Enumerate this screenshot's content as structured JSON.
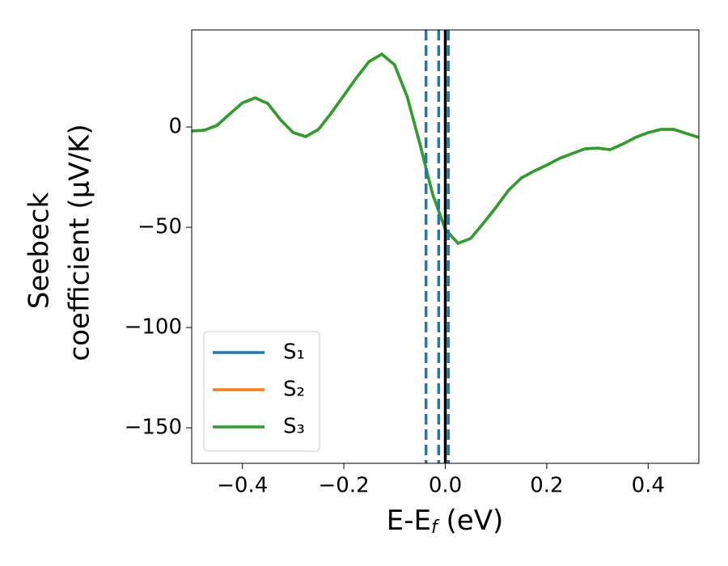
{
  "chart_data": {
    "type": "line",
    "xlabel": [
      "E-E",
      "f",
      " (eV)"
    ],
    "ylabel": [
      "Seebeck",
      "coefficient  (μV/K)"
    ],
    "x": [
      -0.5,
      -0.475,
      -0.45,
      -0.425,
      -0.4,
      -0.375,
      -0.35,
      -0.325,
      -0.3,
      -0.275,
      -0.25,
      -0.225,
      -0.2,
      -0.175,
      -0.15,
      -0.125,
      -0.1,
      -0.075,
      -0.05,
      -0.025,
      0,
      0.025,
      0.05,
      0.075,
      0.1,
      0.125,
      0.15,
      0.175,
      0.2,
      0.225,
      0.25,
      0.275,
      0.3,
      0.325,
      0.35,
      0.375,
      0.4,
      0.425,
      0.45,
      0.475,
      0.5
    ],
    "series": [
      {
        "name": "S₁",
        "color": "#1f77b4",
        "values": [
          -2,
          -1.6,
          0.8,
          6.5,
          12,
          14.5,
          11.7,
          3.6,
          -2.8,
          -4.8,
          -1.2,
          6.9,
          15.7,
          24.6,
          32.7,
          36.3,
          31,
          15,
          -8.5,
          -33.5,
          -51,
          -58,
          -55.6,
          -48,
          -40,
          -31.5,
          -25.4,
          -22,
          -19,
          -15.7,
          -13.3,
          -10.9,
          -10.5,
          -11.3,
          -8.5,
          -5.2,
          -2.8,
          -1.2,
          -1.2,
          -3.2,
          -5.2
        ]
      },
      {
        "name": "S₂",
        "color": "#ff7f0e",
        "values": [
          -2,
          -1.6,
          0.8,
          6.5,
          12,
          14.5,
          11.7,
          3.6,
          -2.8,
          -4.8,
          -1.2,
          6.9,
          15.7,
          24.6,
          32.7,
          36.3,
          31,
          15,
          -8.5,
          -33.5,
          -51,
          -58,
          -55.6,
          -48,
          -40,
          -31.5,
          -25.4,
          -22,
          -19,
          -15.7,
          -13.3,
          -10.9,
          -10.5,
          -11.3,
          -8.5,
          -5.2,
          -2.8,
          -1.2,
          -1.2,
          -3.2,
          -5.2
        ]
      },
      {
        "name": "S₃",
        "color": "#2ca02c",
        "values": [
          -2,
          -1.6,
          0.8,
          6.5,
          12,
          14.5,
          11.7,
          3.6,
          -2.8,
          -4.8,
          -1.2,
          6.9,
          15.7,
          24.6,
          32.7,
          36.3,
          31,
          15,
          -8.5,
          -33.5,
          -51,
          -58,
          -55.6,
          -48,
          -40,
          -31.5,
          -25.4,
          -22,
          -19,
          -15.7,
          -13.3,
          -10.9,
          -10.5,
          -11.3,
          -8.5,
          -5.2,
          -2.8,
          -1.2,
          -1.2,
          -3.2,
          -5.2
        ]
      }
    ],
    "vlines": [
      {
        "x": [
          -0.038,
          -0.013,
          0.006
        ],
        "color": "#1f77b4",
        "style": "dashed"
      },
      {
        "x": [
          0
        ],
        "color": "#000000",
        "style": "solid"
      }
    ],
    "xlim": [
      -0.5,
      0.5
    ],
    "ylim": [
      -167.7,
      48.4
    ],
    "xticks": [
      {
        "value": -0.4,
        "label": "−0.4"
      },
      {
        "value": -0.2,
        "label": "−0.2"
      },
      {
        "value": 0,
        "label": "0.0"
      },
      {
        "value": 0.2,
        "label": "0.2"
      },
      {
        "value": 0.4,
        "label": "0.4"
      }
    ],
    "yticks": [
      {
        "value": -150,
        "label": "−150"
      },
      {
        "value": -100,
        "label": "−100"
      },
      {
        "value": -50,
        "label": "−50"
      },
      0
    ],
    "legend": "lower left",
    "grid": false
  }
}
